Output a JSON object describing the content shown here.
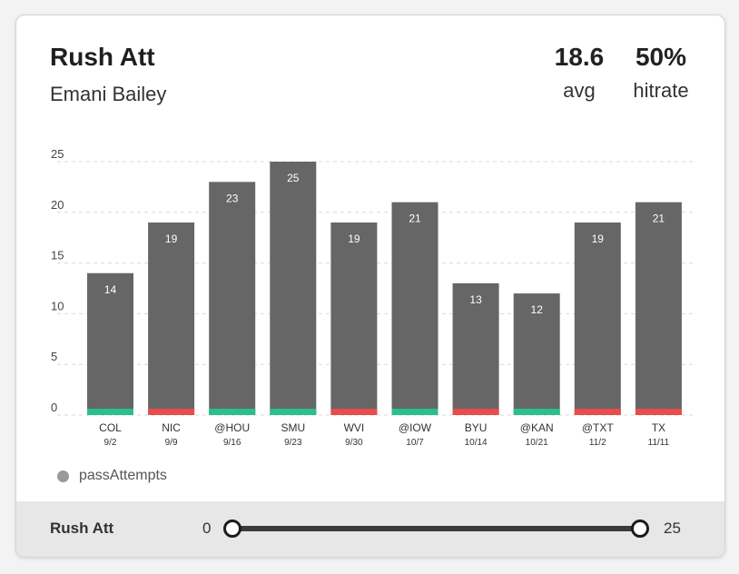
{
  "header": {
    "title": "Rush Att",
    "player": "Emani Bailey",
    "avg_value": "18.6",
    "avg_label": "avg",
    "hitrate_value": "50%",
    "hitrate_label": "hitrate"
  },
  "legend": {
    "label": "passAttempts"
  },
  "footer": {
    "label": "Rush Att",
    "slider_min": "0",
    "slider_max": "25"
  },
  "colors": {
    "bar": "#666666",
    "hit": "#2bbf8a",
    "miss": "#e84c4c",
    "legend_dot": "#9a9a9a"
  },
  "chart_data": {
    "type": "bar",
    "categories": [
      "COL",
      "NIC",
      "@HOU",
      "SMU",
      "WVI",
      "@IOW",
      "BYU",
      "@KAN",
      "@TXT",
      "TX"
    ],
    "dates": [
      "9/2",
      "9/9",
      "9/16",
      "9/23",
      "9/30",
      "10/7",
      "10/14",
      "10/21",
      "11/2",
      "11/11"
    ],
    "values": [
      14,
      19,
      23,
      25,
      19,
      21,
      13,
      12,
      19,
      21
    ],
    "outcome": [
      "hit",
      "miss",
      "hit",
      "hit",
      "miss",
      "hit",
      "miss",
      "hit",
      "miss",
      "miss"
    ],
    "ylim": [
      0,
      25
    ],
    "yticks": [
      0,
      5,
      10,
      15,
      20,
      25
    ],
    "grid": true
  }
}
